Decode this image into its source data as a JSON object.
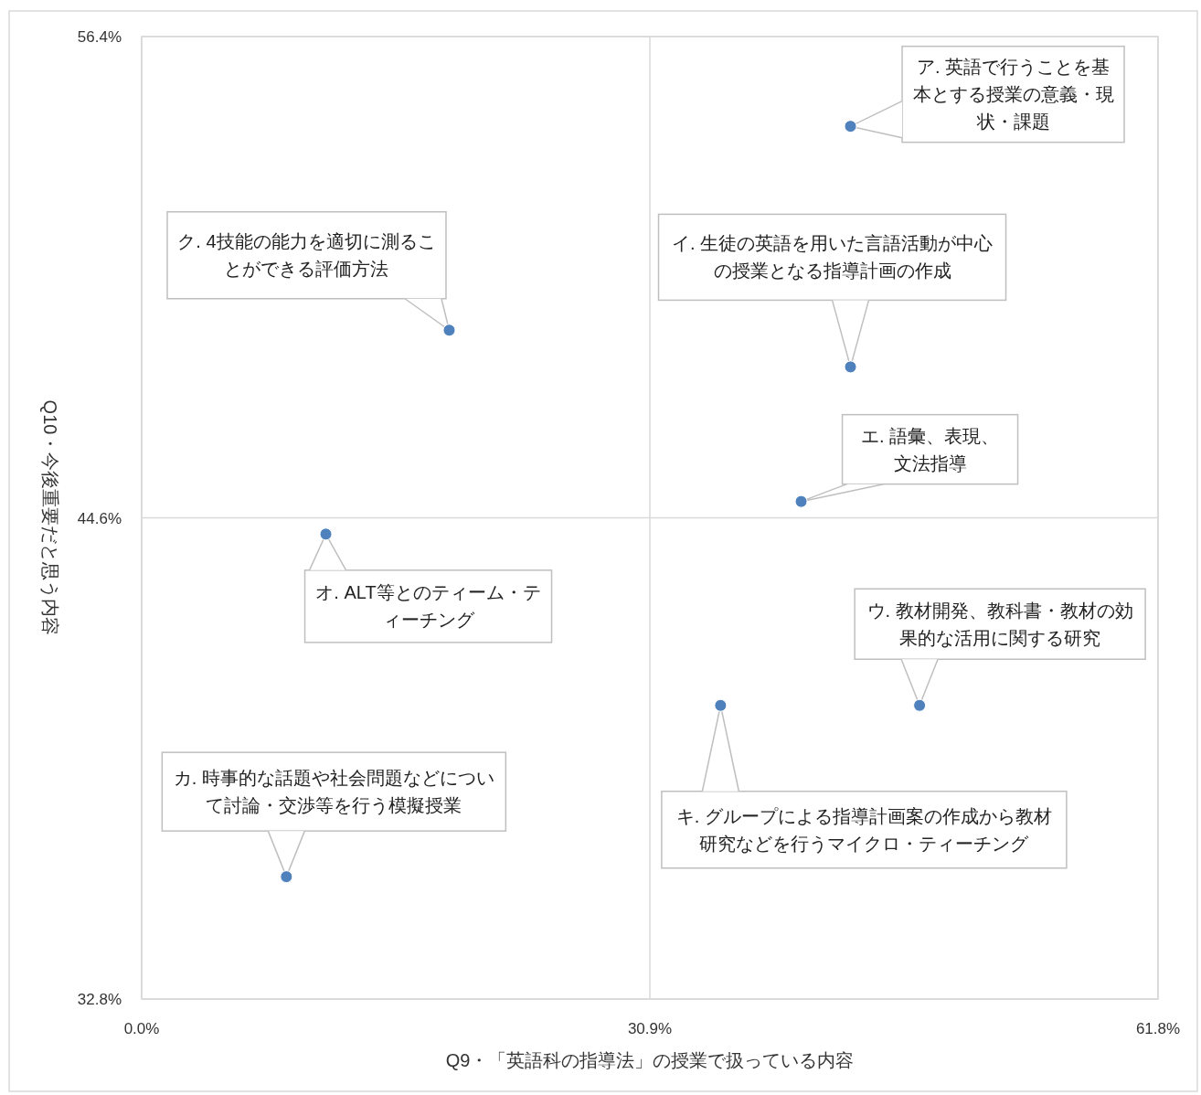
{
  "chart_data": {
    "type": "scatter",
    "xlabel": "Q9・「英語科の指導法」の授業で扱っている内容",
    "ylabel": "Q10・今後重要だと思う内容",
    "x": [
      43.1,
      43.1,
      47.3,
      40.1,
      11.2,
      8.8,
      35.2,
      18.7
    ],
    "series": [
      {
        "color": "#4f81bd",
        "values": [
          54.2,
          48.3,
          40.0,
          45.0,
          44.2,
          35.8,
          40.0,
          49.2
        ]
      }
    ],
    "xlim": [
      0,
      61.8
    ],
    "ylim": [
      32.8,
      56.4
    ],
    "xticks": [
      {
        "value": 0,
        "label": "0.0%"
      },
      {
        "value": 30.9,
        "label": "30.9%"
      },
      {
        "value": 61.8,
        "label": "61.8%"
      }
    ],
    "yticks": [
      {
        "value": 32.8,
        "label": "32.8%"
      },
      {
        "value": 44.6,
        "label": "44.6%"
      },
      {
        "value": 56.4,
        "label": "56.4%"
      }
    ],
    "grid": true,
    "marker": "circle",
    "annotations": [
      "ア. 英語で行うことを基本とする授業の意義・現状・課題",
      "イ. 生徒の英語を用いた言語活動が中心の授業となる指導計画の作成",
      "ウ. 教材開発、教科書・教材の効果的な活用に関する研究",
      {
        "text": "エ. 語彙、表現、文法指導",
        "x": 40.1,
        "y": 45.0
      },
      {
        "text": "オ. ALT等とのティーム・ティーチング",
        "x": 11.2,
        "y": 44.2
      },
      "カ. 時事的な話題や社会問題などについて討論・交渉等を行う模擬授業",
      {
        "text": "キ. グループによる指導計画案の作成から教材研究などを行うマイクロ・ティーチング",
        "x": 35.2,
        "y": 40.0
      },
      {
        "text": "ク. 4技能の能力を適切に測ることができる評価方法",
        "x": 18.7,
        "y": 49.2
      }
    ]
  }
}
